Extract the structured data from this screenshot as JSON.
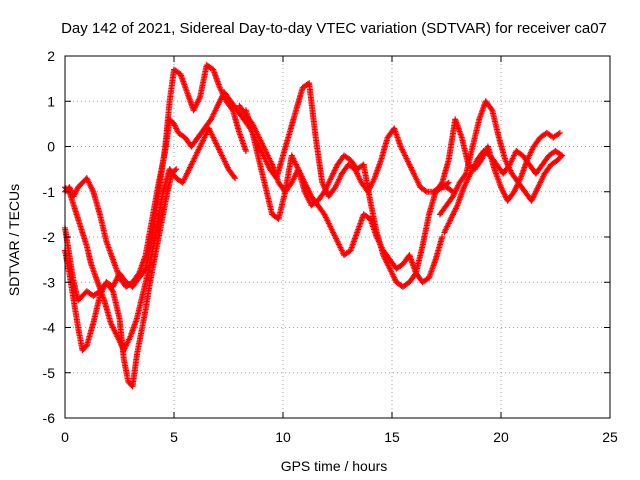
{
  "chart_data": {
    "type": "scatter",
    "title": "Day 142 of 2021, Sidereal Day-to-day VTEC variation (SDTVAR) for receiver ca07",
    "xlabel": "GPS time / hours",
    "ylabel": "SDTVAR / TECUs",
    "xlim": [
      0,
      25
    ],
    "ylim": [
      -6,
      2
    ],
    "x_ticks": [
      "0",
      "5",
      "10",
      "15",
      "20",
      "25"
    ],
    "y_ticks": [
      "2",
      "1",
      "0",
      "-1",
      "-2",
      "-3",
      "-4",
      "-5",
      "-6"
    ],
    "grid": true,
    "marker": "plus",
    "color": "#ff0000",
    "series": [
      {
        "x": [
          0.0,
          0.2,
          0.4,
          0.6,
          0.8,
          1.0,
          1.2,
          1.5,
          1.8,
          2.1,
          2.4,
          2.7,
          3.0,
          3.3,
          3.6,
          3.9,
          4.2,
          4.5,
          4.8,
          5.1,
          5.4,
          5.7,
          6.0,
          6.3,
          6.6,
          6.9,
          7.2,
          7.5,
          7.8
        ],
        "y": [
          -0.9,
          -1.0,
          -1.3,
          -1.6,
          -1.9,
          -2.2,
          -2.6,
          -3.0,
          -3.4,
          -3.9,
          -4.2,
          -4.5,
          -4.2,
          -3.8,
          -3.2,
          -2.6,
          -1.8,
          -1.0,
          -0.5,
          -0.7,
          -0.8,
          -0.5,
          -0.2,
          0.1,
          0.4,
          0.1,
          -0.2,
          -0.5,
          -0.7
        ]
      },
      {
        "x": [
          0.0,
          0.2,
          0.4,
          0.6,
          0.8,
          1.0,
          1.3,
          1.6,
          1.9,
          2.2,
          2.5,
          2.8,
          3.1,
          3.4,
          3.7,
          4.0,
          4.3,
          4.6,
          4.8,
          5.0,
          5.2,
          5.5,
          5.8,
          6.1,
          6.4,
          6.7,
          7.0,
          7.3,
          7.6,
          7.9,
          8.2
        ],
        "y": [
          -1.0,
          -0.9,
          -1.1,
          -0.9,
          -0.8,
          -0.7,
          -1.0,
          -1.5,
          -2.1,
          -2.5,
          -2.9,
          -3.1,
          -3.0,
          -2.8,
          -2.4,
          -1.6,
          -0.8,
          -0.1,
          0.6,
          0.5,
          0.3,
          0.2,
          0.0,
          0.2,
          0.4,
          0.6,
          0.9,
          1.2,
          1.0,
          0.8,
          0.6
        ]
      },
      {
        "x": [
          0.0,
          0.2,
          0.4,
          0.6,
          0.8,
          1.0,
          1.3,
          1.6,
          1.9,
          2.2,
          2.5,
          2.8,
          3.1,
          3.4,
          3.7,
          4.0,
          4.3,
          4.6,
          4.8,
          5.0,
          5.3,
          5.6,
          5.9,
          6.2,
          6.5,
          6.8,
          7.1,
          7.4,
          7.7,
          8.0,
          8.3
        ],
        "y": [
          -1.8,
          -2.4,
          -3.0,
          -3.4,
          -3.3,
          -3.2,
          -3.3,
          -3.2,
          -3.0,
          -3.1,
          -2.8,
          -3.0,
          -3.1,
          -2.9,
          -2.7,
          -2.0,
          -1.0,
          0.0,
          1.0,
          1.7,
          1.6,
          1.2,
          0.8,
          1.1,
          1.8,
          1.7,
          1.3,
          1.0,
          0.8,
          0.3,
          -0.1
        ]
      },
      {
        "x": [
          0.0,
          0.2,
          0.4,
          0.6,
          0.8,
          1.0,
          1.3,
          1.6,
          1.9,
          2.2,
          2.5,
          2.7,
          2.9,
          3.1,
          3.3,
          3.5,
          3.7,
          3.9,
          4.1,
          4.3,
          4.5,
          4.7,
          4.9,
          5.1
        ],
        "y": [
          -2.3,
          -2.8,
          -3.4,
          -4.0,
          -4.5,
          -4.4,
          -3.9,
          -3.3,
          -3.0,
          -3.2,
          -3.8,
          -4.7,
          -5.2,
          -5.3,
          -4.6,
          -4.1,
          -3.6,
          -3.0,
          -2.5,
          -2.0,
          -1.5,
          -1.0,
          -0.6,
          -0.5
        ]
      },
      {
        "x": [
          8.2,
          8.5,
          8.8,
          9.1,
          9.4,
          9.7,
          10.0,
          10.3,
          10.6,
          10.9,
          11.2,
          11.5,
          11.8,
          12.1,
          12.4,
          12.7,
          13.0,
          13.3,
          13.6,
          13.9,
          14.2,
          14.5,
          14.8,
          15.1,
          15.4,
          15.7,
          16.0,
          16.3,
          16.6,
          16.9,
          17.2,
          17.5,
          17.8
        ],
        "y": [
          0.6,
          0.4,
          0.1,
          -0.2,
          -0.5,
          -0.7,
          -0.2,
          0.3,
          0.8,
          1.3,
          1.4,
          0.2,
          -0.8,
          -1.1,
          -0.9,
          -0.6,
          -0.4,
          -0.5,
          -0.8,
          -1.0,
          -0.7,
          -0.3,
          0.2,
          0.4,
          0.0,
          -0.3,
          -0.6,
          -0.9,
          -1.0,
          -1.0,
          -0.9,
          -0.9,
          -1.0
        ]
      },
      {
        "x": [
          8.3,
          8.6,
          8.9,
          9.2,
          9.5,
          9.8,
          10.1,
          10.4,
          10.7,
          11.0,
          11.3,
          11.6,
          11.9,
          12.2,
          12.5,
          12.8,
          13.1,
          13.4,
          13.7,
          14.0,
          14.3,
          14.6,
          14.9,
          15.2,
          15.5,
          15.8,
          16.1,
          16.4,
          16.7,
          17.0,
          17.3,
          17.6
        ],
        "y": [
          0.8,
          0.3,
          -0.3,
          -0.9,
          -1.5,
          -1.6,
          -1.0,
          -0.2,
          -0.5,
          -1.0,
          -1.3,
          -1.2,
          -1.0,
          -0.7,
          -0.4,
          -0.2,
          -0.3,
          -0.5,
          -0.4,
          -1.2,
          -1.9,
          -2.4,
          -2.7,
          -3.0,
          -3.1,
          -3.0,
          -2.8,
          -2.2,
          -1.5,
          -1.0,
          -0.9,
          -0.8
        ]
      },
      {
        "x": [
          8.0,
          8.3,
          8.6,
          8.9,
          9.2,
          9.5,
          9.8,
          10.1,
          10.4,
          10.7,
          11.0,
          11.3,
          11.6,
          11.9,
          12.2,
          12.5,
          12.8,
          13.1,
          13.4,
          13.7,
          14.0,
          14.3,
          14.6,
          14.9,
          15.2,
          15.5,
          15.8,
          16.1,
          16.4,
          16.7,
          17.0,
          17.3
        ],
        "y": [
          0.9,
          0.7,
          0.5,
          0.2,
          -0.1,
          -0.4,
          -0.8,
          -1.0,
          -0.8,
          -0.5,
          -0.8,
          -1.1,
          -1.3,
          -1.5,
          -1.8,
          -2.1,
          -2.4,
          -2.3,
          -1.9,
          -1.5,
          -1.6,
          -2.0,
          -2.3,
          -2.5,
          -2.7,
          -2.6,
          -2.4,
          -2.8,
          -3.0,
          -2.9,
          -2.5,
          -2.0
        ]
      },
      {
        "x": [
          17.0,
          17.3,
          17.6,
          17.9,
          18.2,
          18.5,
          18.8,
          19.1,
          19.4,
          19.7,
          20.0,
          20.3,
          20.6,
          20.9,
          21.2,
          21.5,
          21.8,
          22.1,
          22.4,
          22.7
        ],
        "y": [
          -1.0,
          -0.8,
          -0.3,
          0.6,
          0.2,
          -0.4,
          -0.5,
          -0.3,
          0.0,
          -0.5,
          -0.9,
          -1.2,
          -1.0,
          -0.7,
          -0.3,
          0.0,
          0.2,
          0.3,
          0.2,
          0.3
        ]
      },
      {
        "x": [
          17.2,
          17.5,
          17.8,
          18.1,
          18.4,
          18.7,
          19.0,
          19.3,
          19.6,
          19.9,
          20.2,
          20.5,
          20.8,
          21.1,
          21.4,
          21.7,
          22.0,
          22.3,
          22.6,
          22.8
        ],
        "y": [
          -1.5,
          -1.3,
          -1.1,
          -0.8,
          -0.6,
          0.0,
          0.6,
          1.0,
          0.8,
          0.2,
          -0.3,
          -0.6,
          -0.8,
          -1.0,
          -1.2,
          -0.9,
          -0.6,
          -0.4,
          -0.3,
          -0.2
        ]
      },
      {
        "x": [
          17.4,
          17.7,
          18.0,
          18.3,
          18.6,
          18.9,
          19.2,
          19.5,
          19.8,
          20.1,
          20.4,
          20.7,
          21.0,
          21.3,
          21.6,
          21.9,
          22.2,
          22.5,
          22.8
        ],
        "y": [
          -1.9,
          -1.6,
          -1.3,
          -0.9,
          -0.6,
          -0.3,
          -0.1,
          -0.2,
          -0.4,
          -0.6,
          -0.4,
          -0.1,
          -0.2,
          -0.4,
          -0.6,
          -0.4,
          -0.2,
          -0.1,
          -0.2
        ]
      }
    ]
  }
}
